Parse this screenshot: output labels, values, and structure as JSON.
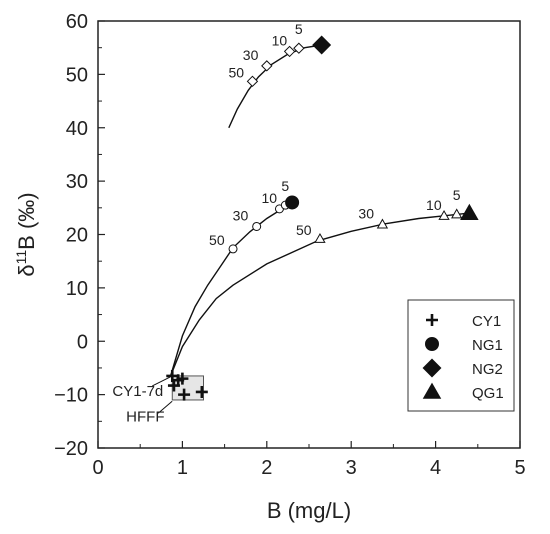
{
  "chart_data": {
    "type": "scatter",
    "xlabel": "B (mg/L)",
    "ylabel_parts": {
      "main": "δ",
      "sup": "11",
      "rest": "B (‰)"
    },
    "xlim": [
      0,
      5
    ],
    "ylim": [
      -20,
      60
    ],
    "x_ticks": [
      0,
      1,
      2,
      3,
      4,
      5
    ],
    "y_ticks": [
      -20,
      -10,
      0,
      10,
      20,
      30,
      40,
      50,
      60
    ],
    "grid": false,
    "legend_position": "bottom-right",
    "series": [
      {
        "name": "CY1",
        "marker": "plus",
        "color": "#111111",
        "points": [
          {
            "x": 0.88,
            "y": -6.5
          },
          {
            "x": 0.9,
            "y": -8.3
          },
          {
            "x": 0.95,
            "y": -7.3
          },
          {
            "x": 1.0,
            "y": -7.0
          },
          {
            "x": 1.02,
            "y": -10.0
          },
          {
            "x": 1.23,
            "y": -9.5
          }
        ]
      },
      {
        "name": "NG1",
        "marker": "circle",
        "color": "#111111",
        "points": [
          {
            "x": 2.3,
            "y": 26.0
          }
        ]
      },
      {
        "name": "NG2",
        "marker": "diamond",
        "color": "#111111",
        "points": [
          {
            "x": 2.65,
            "y": 55.5
          }
        ]
      },
      {
        "name": "QG1",
        "marker": "triangle",
        "color": "#111111",
        "points": [
          {
            "x": 4.4,
            "y": 24.0
          }
        ]
      }
    ],
    "mixing_curves": [
      {
        "target": "NG1",
        "marker": "circle",
        "curve": [
          {
            "x": 0.86,
            "y": -6.5
          },
          {
            "x": 1.0,
            "y": 1.0
          },
          {
            "x": 1.15,
            "y": 6.5
          },
          {
            "x": 1.3,
            "y": 10.5
          },
          {
            "x": 1.45,
            "y": 14.0
          },
          {
            "x": 1.6,
            "y": 17.5
          },
          {
            "x": 1.8,
            "y": 20.5
          },
          {
            "x": 2.0,
            "y": 23.0
          },
          {
            "x": 2.15,
            "y": 24.5
          },
          {
            "x": 2.3,
            "y": 26.0
          }
        ],
        "ticks": [
          {
            "x": 1.6,
            "y": 17.3,
            "label": "50"
          },
          {
            "x": 1.88,
            "y": 21.5,
            "label": "30"
          },
          {
            "x": 2.15,
            "y": 24.8,
            "label": "10"
          },
          {
            "x": 2.22,
            "y": 25.5,
            "label": "5"
          }
        ]
      },
      {
        "target": "QG1",
        "marker": "triangle",
        "curve": [
          {
            "x": 0.86,
            "y": -6.5
          },
          {
            "x": 1.0,
            "y": -1.0
          },
          {
            "x": 1.2,
            "y": 4.0
          },
          {
            "x": 1.4,
            "y": 8.0
          },
          {
            "x": 1.6,
            "y": 10.5
          },
          {
            "x": 2.0,
            "y": 14.5
          },
          {
            "x": 2.6,
            "y": 18.8
          },
          {
            "x": 3.0,
            "y": 20.6
          },
          {
            "x": 3.4,
            "y": 22.0
          },
          {
            "x": 3.8,
            "y": 23.0
          },
          {
            "x": 4.1,
            "y": 23.5
          },
          {
            "x": 4.4,
            "y": 24.0
          }
        ],
        "ticks": [
          {
            "x": 2.63,
            "y": 19.2,
            "label": "50"
          },
          {
            "x": 3.37,
            "y": 21.9,
            "label": "30"
          },
          {
            "x": 4.1,
            "y": 23.5,
            "label": "10"
          },
          {
            "x": 4.25,
            "y": 23.8,
            "label": "5"
          }
        ]
      },
      {
        "target": "NG2",
        "marker": "diamond",
        "curve": [
          {
            "x": 1.55,
            "y": 40.0
          },
          {
            "x": 1.65,
            "y": 43.5
          },
          {
            "x": 1.78,
            "y": 47.0
          },
          {
            "x": 1.9,
            "y": 49.5
          },
          {
            "x": 2.05,
            "y": 51.8
          },
          {
            "x": 2.25,
            "y": 53.8
          },
          {
            "x": 2.45,
            "y": 55.0
          },
          {
            "x": 2.65,
            "y": 55.5
          }
        ],
        "ticks": [
          {
            "x": 1.83,
            "y": 48.7,
            "label": "50"
          },
          {
            "x": 2.0,
            "y": 51.6,
            "label": "30"
          },
          {
            "x": 2.27,
            "y": 54.3,
            "label": "10"
          },
          {
            "x": 2.38,
            "y": 54.9,
            "label": "5"
          }
        ]
      }
    ],
    "annotations": [
      {
        "text": "CY1-7d",
        "x": 0.88,
        "y": -6.5
      },
      {
        "text": "HFFF",
        "x": 0.95,
        "y": -9.0
      }
    ],
    "hfff_box": {
      "x0": 0.88,
      "x1": 1.25,
      "y0": -11.0,
      "y1": -6.5
    }
  }
}
